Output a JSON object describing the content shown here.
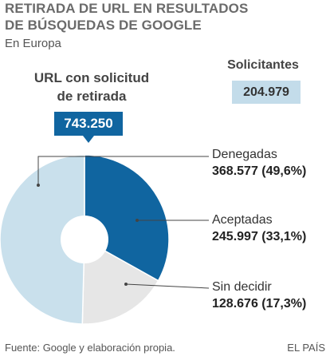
{
  "header": {
    "title_line1": "RETIRADA DE URL EN RESULTADOS",
    "title_line2": "DE BÚSQUEDAS DE GOOGLE",
    "subtitle": "En Europa"
  },
  "url_total": {
    "label_line1": "URL con solicitud",
    "label_line2": "de retirada",
    "value": "743.250"
  },
  "requesters": {
    "label": "Solicitantes",
    "value": "204.979"
  },
  "footer": {
    "source": "Fuente: Google y elaboración propia.",
    "brand": "EL PAÍS"
  },
  "colors": {
    "denied": "#c9e0ec",
    "accepted": "#1065a0",
    "undecided": "#e6e6e6",
    "total_box": "#1065a0",
    "requesters_box": "#c3dcea"
  },
  "chart_data": {
    "type": "pie",
    "donut": true,
    "categories": [
      "Denegadas",
      "Aceptadas",
      "Sin decidir"
    ],
    "values": [
      368577,
      245997,
      128676
    ],
    "value_labels": [
      "368.577",
      "245.997",
      "128.676"
    ],
    "percent_labels": [
      "(49,6%)",
      "(33,1%)",
      "(17,3%)"
    ],
    "percentages": [
      49.6,
      33.1,
      17.3
    ]
  }
}
